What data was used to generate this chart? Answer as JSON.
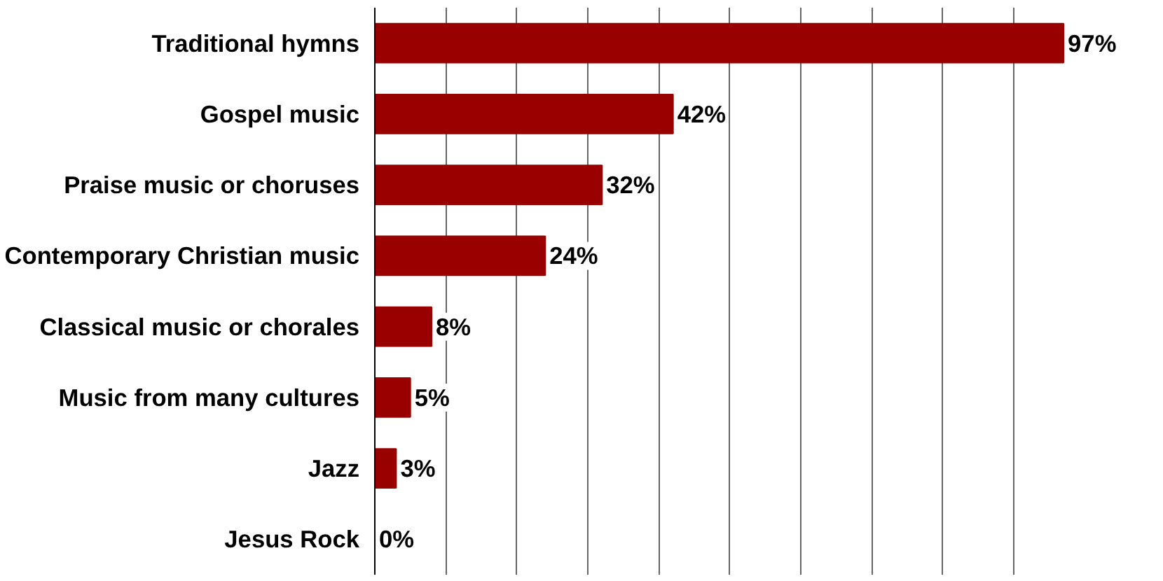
{
  "chart_data": {
    "type": "bar",
    "orientation": "horizontal",
    "categories": [
      "Traditional hymns",
      "Gospel music",
      "Praise music or choruses",
      "Contemporary Christian music",
      "Classical music or chorales",
      "Music from many cultures",
      "Jazz",
      "Jesus Rock"
    ],
    "values": [
      97,
      42,
      32,
      24,
      8,
      5,
      3,
      0
    ],
    "value_labels": [
      "97%",
      "42%",
      "32%",
      "24%",
      "8%",
      "5%",
      "3%",
      "0%"
    ],
    "color": "#990000",
    "xticks": [
      {
        "value": 0,
        "label": null
      },
      {
        "value": 10,
        "label": null
      },
      {
        "value": 20,
        "label": null
      },
      {
        "value": 30,
        "label": null
      },
      {
        "value": 40,
        "label": null
      },
      {
        "value": 50,
        "label": null
      },
      {
        "value": 60,
        "label": null
      },
      {
        "value": 70,
        "label": null
      },
      {
        "value": 80,
        "label": null
      },
      {
        "value": 90,
        "label": null
      }
    ],
    "tick_labels": "y",
    "grid": "x"
  }
}
